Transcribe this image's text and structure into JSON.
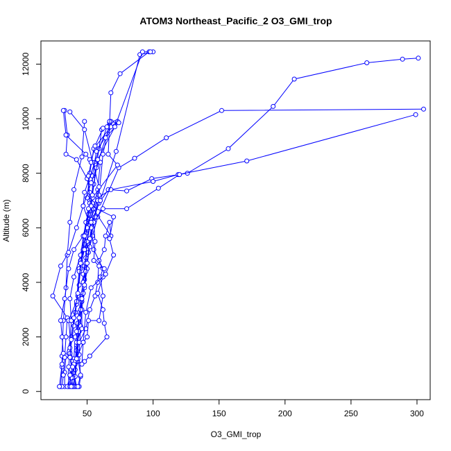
{
  "chart_data": {
    "type": "line",
    "title": "ATOM3 Northeast_Pacific_2 O3_GMI_trop",
    "xlabel": "O3_GMI_trop",
    "ylabel": "Altitude (m)",
    "xlim": [
      15,
      310
    ],
    "ylim": [
      -300,
      12850
    ],
    "x_ticks": [
      50,
      100,
      150,
      200,
      250,
      300
    ],
    "y_ticks": [
      0,
      2000,
      4000,
      6000,
      8000,
      10000,
      12000
    ],
    "marker": "open-circle",
    "color": "#0000ff",
    "series": [
      {
        "points": [
          [
            30,
            180
          ],
          [
            31,
            900
          ],
          [
            31,
            1300
          ],
          [
            32,
            2600
          ],
          [
            34,
            3800
          ],
          [
            35,
            5000
          ],
          [
            37,
            6200
          ],
          [
            40,
            7400
          ],
          [
            46,
            8600
          ],
          [
            48,
            9900
          ]
        ]
      },
      {
        "points": [
          [
            36,
            180
          ],
          [
            38,
            600
          ],
          [
            40,
            1200
          ],
          [
            41,
            2000
          ],
          [
            44,
            2900
          ],
          [
            47,
            3600
          ],
          [
            48,
            4600
          ],
          [
            51,
            5400
          ],
          [
            54,
            6200
          ],
          [
            59,
            6900
          ],
          [
            66,
            7400
          ],
          [
            80,
            7350
          ],
          [
            99,
            7800
          ],
          [
            126,
            8000
          ],
          [
            157,
            8900
          ],
          [
            191,
            10450
          ],
          [
            207,
            11450
          ],
          [
            262,
            12050
          ],
          [
            289,
            12180
          ],
          [
            301,
            12220
          ]
        ]
      },
      {
        "points": [
          [
            42,
            180
          ],
          [
            40,
            700
          ],
          [
            42,
            1500
          ],
          [
            44,
            2200
          ],
          [
            46,
            3300
          ],
          [
            48,
            4100
          ],
          [
            49,
            4900
          ],
          [
            49,
            5800
          ],
          [
            52,
            6600
          ],
          [
            55,
            7600
          ],
          [
            57,
            8300
          ],
          [
            59,
            8900
          ],
          [
            61,
            9600
          ],
          [
            71,
            9850
          ]
        ]
      },
      {
        "points": [
          [
            44,
            180
          ],
          [
            45,
            550
          ],
          [
            44,
            1350
          ],
          [
            45,
            2400
          ],
          [
            46,
            3500
          ],
          [
            47,
            4300
          ],
          [
            50,
            5200
          ],
          [
            51,
            6100
          ],
          [
            54,
            6900
          ],
          [
            54,
            7900
          ],
          [
            57,
            8800
          ],
          [
            70,
            9800
          ]
        ]
      },
      {
        "points": [
          [
            33,
            180
          ],
          [
            33,
            700
          ],
          [
            34,
            1300
          ],
          [
            38,
            2000
          ],
          [
            41,
            2900
          ],
          [
            43,
            3500
          ],
          [
            45,
            4500
          ],
          [
            48,
            5400
          ],
          [
            51,
            6300
          ],
          [
            52,
            7300
          ],
          [
            50,
            7800
          ],
          [
            42,
            8500
          ],
          [
            34,
            8700
          ],
          [
            35,
            9400
          ],
          [
            33,
            10300
          ]
        ]
      },
      {
        "points": [
          [
            40,
            180
          ],
          [
            41,
            800
          ],
          [
            42,
            1700
          ],
          [
            43,
            2500
          ],
          [
            45,
            3400
          ],
          [
            47,
            4000
          ],
          [
            49,
            4700
          ],
          [
            50,
            5500
          ],
          [
            53,
            6300
          ],
          [
            58,
            7100
          ],
          [
            68,
            7400
          ],
          [
            100,
            7700
          ],
          [
            119,
            7950
          ],
          [
            171,
            8450
          ],
          [
            299,
            10150
          ]
        ]
      },
      {
        "points": [
          [
            41,
            180
          ],
          [
            41,
            1000
          ],
          [
            42,
            1800
          ],
          [
            46,
            2300
          ],
          [
            46,
            3000
          ],
          [
            48,
            3800
          ],
          [
            50,
            4500
          ],
          [
            51,
            5100
          ],
          [
            54,
            5700
          ],
          [
            58,
            6400
          ],
          [
            74,
            8200
          ],
          [
            86,
            8550
          ],
          [
            110,
            9300
          ],
          [
            152,
            10300
          ],
          [
            305,
            10350
          ]
        ]
      },
      {
        "points": [
          [
            36,
            180
          ],
          [
            36,
            900
          ],
          [
            37,
            1400
          ],
          [
            40,
            2400
          ],
          [
            42,
            3200
          ],
          [
            44,
            3900
          ],
          [
            45,
            4800
          ],
          [
            47,
            5700
          ],
          [
            51,
            6500
          ],
          [
            52,
            7000
          ],
          [
            50,
            7100
          ],
          [
            52,
            8000
          ],
          [
            55,
            8900
          ],
          [
            68,
            9700
          ],
          [
            73,
            9900
          ]
        ]
      },
      {
        "points": [
          [
            43,
            180
          ],
          [
            45,
            600
          ],
          [
            43,
            1200
          ],
          [
            42,
            2200
          ],
          [
            45,
            3000
          ],
          [
            47,
            3600
          ],
          [
            49,
            4400
          ],
          [
            52,
            5300
          ],
          [
            55,
            6200
          ],
          [
            62,
            6700
          ],
          [
            80,
            6700
          ],
          [
            104,
            7450
          ],
          [
            120,
            7950
          ]
        ]
      },
      {
        "points": [
          [
            39,
            180
          ],
          [
            41,
            550
          ],
          [
            42,
            1100
          ],
          [
            44,
            2700
          ],
          [
            46,
            3400
          ],
          [
            48,
            3900
          ],
          [
            50,
            4700
          ],
          [
            52,
            5600
          ],
          [
            56,
            6400
          ],
          [
            59,
            7200
          ],
          [
            62,
            8700
          ],
          [
            67,
            9850
          ]
        ]
      },
      {
        "points": [
          [
            31,
            180
          ],
          [
            32,
            600
          ],
          [
            33,
            1250
          ],
          [
            34,
            2000
          ],
          [
            35,
            2700
          ],
          [
            24,
            3500
          ],
          [
            30,
            4600
          ],
          [
            36,
            5100
          ],
          [
            42,
            6000
          ],
          [
            47,
            6800
          ],
          [
            53,
            7650
          ],
          [
            57,
            8200
          ],
          [
            64,
            9300
          ],
          [
            74,
            9850
          ]
        ]
      },
      {
        "points": [
          [
            35,
            180
          ],
          [
            37,
            600
          ],
          [
            39,
            1100
          ],
          [
            36,
            2600
          ],
          [
            42,
            3300
          ],
          [
            44,
            4500
          ],
          [
            47,
            5200
          ],
          [
            50,
            6000
          ],
          [
            55,
            6700
          ],
          [
            58,
            7400
          ],
          [
            60,
            8400
          ],
          [
            52,
            8500
          ],
          [
            49,
            8700
          ],
          [
            34,
            9400
          ],
          [
            32,
            10300
          ]
        ]
      },
      {
        "points": [
          [
            38,
            180
          ],
          [
            39,
            500
          ],
          [
            41,
            1100
          ],
          [
            44,
            1800
          ],
          [
            49,
            2300
          ],
          [
            52,
            3000
          ],
          [
            56,
            3500
          ],
          [
            58,
            4000
          ],
          [
            59,
            4800
          ],
          [
            63,
            5200
          ],
          [
            64,
            5700
          ],
          [
            67,
            6200
          ],
          [
            68,
            5700
          ],
          [
            52,
            6900
          ],
          [
            51,
            7900
          ],
          [
            53,
            8400
          ],
          [
            56,
            9000
          ],
          [
            62,
            9650
          ],
          [
            68,
            9900
          ]
        ]
      },
      {
        "points": [
          [
            40,
            180
          ],
          [
            42,
            1200
          ],
          [
            47,
            1800
          ],
          [
            50,
            2000
          ],
          [
            51,
            2600
          ],
          [
            59,
            2600
          ],
          [
            62,
            3500
          ],
          [
            60,
            4200
          ],
          [
            62,
            4500
          ],
          [
            55,
            5200
          ],
          [
            53,
            6000
          ],
          [
            47,
            6800
          ],
          [
            48,
            7300
          ],
          [
            65,
            9700
          ],
          [
            67,
            9900
          ]
        ]
      },
      {
        "points": [
          [
            39,
            180
          ],
          [
            38,
            800
          ],
          [
            37,
            1600
          ],
          [
            38,
            2600
          ],
          [
            37,
            3400
          ],
          [
            40,
            4200
          ],
          [
            45,
            5000
          ],
          [
            49,
            6200
          ],
          [
            54,
            7100
          ],
          [
            73,
            8300
          ],
          [
            66,
            8700
          ],
          [
            68,
            10950
          ],
          [
            75,
            11650
          ],
          [
            97,
            12450
          ]
        ]
      },
      {
        "points": [
          [
            37,
            180
          ],
          [
            38,
            500
          ],
          [
            40,
            1000
          ],
          [
            48,
            1100
          ],
          [
            52,
            1300
          ],
          [
            65,
            2000
          ],
          [
            63,
            2500
          ],
          [
            62,
            3000
          ],
          [
            58,
            3600
          ],
          [
            62,
            4200
          ],
          [
            63,
            4500
          ],
          [
            59,
            4600
          ],
          [
            55,
            4800
          ],
          [
            56,
            5500
          ],
          [
            55,
            6200
          ],
          [
            58,
            7000
          ],
          [
            59,
            7500
          ],
          [
            48,
            9600
          ],
          [
            37,
            10250
          ]
        ]
      },
      {
        "points": [
          [
            29,
            180
          ],
          [
            31,
            1000
          ],
          [
            32,
            1400
          ],
          [
            31,
            2000
          ],
          [
            30,
            2600
          ],
          [
            33,
            3400
          ],
          [
            36,
            4500
          ],
          [
            40,
            5200
          ],
          [
            47,
            5700
          ],
          [
            53,
            6800
          ],
          [
            70,
            6400
          ],
          [
            67,
            5600
          ],
          [
            70,
            5000
          ],
          [
            64,
            4300
          ],
          [
            53,
            3800
          ],
          [
            49,
            2900
          ],
          [
            47,
            1800
          ],
          [
            46,
            1000
          ]
        ]
      },
      {
        "points": [
          [
            44,
            4400
          ],
          [
            48,
            5200
          ],
          [
            53,
            6200
          ],
          [
            60,
            7000
          ],
          [
            72,
            8800
          ],
          [
            90,
            12350
          ],
          [
            100,
            12450
          ]
        ]
      },
      {
        "points": [
          [
            38,
            180
          ],
          [
            37,
            600
          ],
          [
            39,
            900
          ],
          [
            37,
            1250
          ],
          [
            38,
            1900
          ],
          [
            40,
            2700
          ],
          [
            43,
            3600
          ],
          [
            45,
            4700
          ],
          [
            48,
            5700
          ],
          [
            51,
            6700
          ],
          [
            54,
            7200
          ],
          [
            58,
            8500
          ],
          [
            71,
            9700
          ],
          [
            92,
            12450
          ],
          [
            98,
            12450
          ]
        ]
      }
    ]
  }
}
